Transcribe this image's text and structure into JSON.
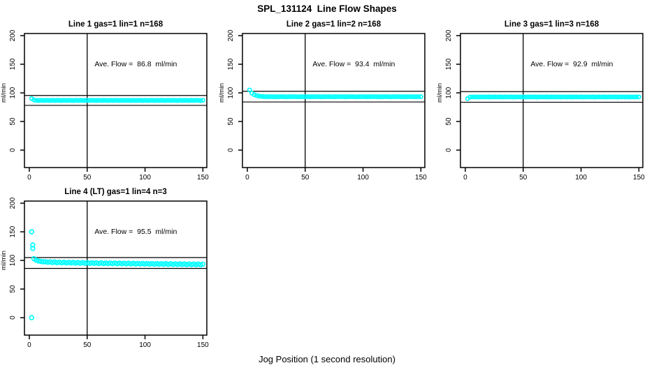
{
  "title": "SPL_131124  Line Flow Shapes",
  "xlabel": "Jog Position (1 second resolution)",
  "colors": {
    "points": "#00ffff",
    "axis": "#000000",
    "background": "#ffffff"
  },
  "chart_data": [
    {
      "type": "scatter",
      "title": "Line 1 gas=1 lin=1 n=168",
      "annotation": "Ave. Flow =  86.8  ml/min",
      "ave_flow_ml_min": 86.8,
      "ylabel": "ml/min",
      "xticks": [
        0,
        50,
        100,
        150
      ],
      "yticks": [
        0,
        50,
        100,
        150,
        200
      ],
      "xlim": [
        -4.2,
        153.4
      ],
      "ylim": [
        -30.5,
        203.7
      ],
      "vline_x": 50,
      "hlines_y": [
        95.48,
        78.12
      ],
      "grid": false,
      "point_radius": 2.6,
      "x_start": 2,
      "x_step": 2,
      "y": [
        90.0,
        87.6,
        86.8,
        86.6,
        87.0,
        86.7,
        86.9,
        86.8,
        86.6,
        87.0,
        86.7,
        86.9,
        86.8,
        86.6,
        87.0,
        86.7,
        86.9,
        86.8,
        86.6,
        87.0,
        86.7,
        86.9,
        86.8,
        86.6,
        87.0,
        86.7,
        86.9,
        86.8,
        86.6,
        87.0,
        86.7,
        86.9,
        86.8,
        86.6,
        87.0,
        86.7,
        86.9,
        86.8,
        86.6,
        87.0,
        86.7,
        86.9,
        86.8,
        86.6,
        87.0,
        86.7,
        86.9,
        86.8,
        86.6,
        87.0,
        86.7,
        86.9,
        86.8,
        86.6,
        87.0,
        86.7,
        86.9,
        86.8,
        86.6,
        87.0,
        86.7,
        86.9,
        86.8,
        86.6,
        87.0,
        86.7,
        86.9,
        86.8,
        86.6,
        87.0,
        86.7,
        86.9,
        86.8,
        86.6,
        87.0
      ],
      "outlier_points": []
    },
    {
      "type": "scatter",
      "title": "Line 2 gas=1 lin=2 n=168",
      "annotation": "Ave. Flow =  93.4  ml/min",
      "ave_flow_ml_min": 93.4,
      "ylabel": "ml/min",
      "xticks": [
        0,
        50,
        100,
        150
      ],
      "yticks": [
        0,
        50,
        100,
        150,
        200
      ],
      "xlim": [
        -4.2,
        153.4
      ],
      "ylim": [
        -30.5,
        203.7
      ],
      "vline_x": 50,
      "hlines_y": [
        102.74,
        84.06
      ],
      "grid": false,
      "point_radius": 2.6,
      "x_start": 2,
      "x_step": 2,
      "y": [
        105.0,
        99.5,
        96.8,
        95.2,
        94.3,
        93.8,
        93.5,
        93.3,
        93.2,
        93.4,
        93.2,
        93.1,
        93.3,
        93.2,
        93.4,
        93.2,
        93.1,
        93.3,
        93.2,
        93.4,
        93.2,
        93.1,
        93.3,
        93.2,
        93.4,
        93.2,
        93.1,
        93.3,
        93.2,
        93.4,
        93.2,
        93.1,
        93.3,
        93.2,
        93.4,
        93.2,
        93.1,
        93.3,
        93.2,
        93.4,
        93.2,
        93.1,
        93.3,
        93.2,
        93.4,
        93.2,
        93.1,
        93.3,
        93.2,
        93.4,
        93.2,
        93.1,
        93.3,
        93.2,
        93.4,
        93.2,
        93.1,
        93.3,
        93.2,
        93.4,
        93.2,
        93.1,
        93.3,
        93.2,
        93.4,
        93.2,
        93.1,
        93.3,
        93.2,
        93.4,
        93.2,
        93.1,
        93.3,
        93.2,
        93.4
      ],
      "outlier_points": []
    },
    {
      "type": "scatter",
      "title": "Line 3 gas=1 lin=3 n=168",
      "annotation": "Ave. Flow =  92.9  ml/min",
      "ave_flow_ml_min": 92.9,
      "ylabel": "ml/min",
      "xticks": [
        0,
        50,
        100,
        150
      ],
      "yticks": [
        0,
        50,
        100,
        150,
        200
      ],
      "xlim": [
        -4.2,
        153.4
      ],
      "ylim": [
        -30.5,
        203.7
      ],
      "vline_x": 50,
      "hlines_y": [
        102.19,
        83.61
      ],
      "grid": false,
      "point_radius": 2.6,
      "x_start": 2,
      "x_step": 2,
      "y": [
        90.0,
        92.6,
        92.9,
        92.8,
        93.0,
        92.7,
        92.9,
        92.9,
        92.8,
        93.0,
        92.7,
        92.9,
        92.9,
        92.8,
        93.0,
        92.7,
        92.9,
        92.9,
        92.8,
        93.0,
        92.7,
        92.9,
        92.9,
        92.8,
        93.0,
        92.7,
        92.9,
        92.9,
        92.8,
        93.0,
        92.7,
        92.9,
        92.9,
        92.8,
        93.0,
        92.7,
        92.9,
        92.9,
        92.8,
        93.0,
        92.7,
        92.9,
        92.9,
        92.8,
        93.0,
        92.7,
        92.9,
        92.9,
        92.8,
        93.0,
        92.7,
        92.9,
        92.9,
        92.8,
        93.0,
        92.7,
        92.9,
        92.9,
        92.8,
        93.0,
        92.7,
        92.9,
        92.9,
        92.8,
        93.0,
        92.7,
        92.9,
        92.9,
        92.8,
        93.0,
        92.7,
        92.9,
        92.8,
        93.0,
        92.9
      ],
      "outlier_points": []
    },
    {
      "type": "scatter",
      "title": "Line 4 (LT) gas=1 lin=4 n=3",
      "annotation": "Ave. Flow =  95.5  ml/min",
      "ave_flow_ml_min": 95.5,
      "ylabel": "ml/min",
      "xticks": [
        0,
        50,
        100,
        150
      ],
      "yticks": [
        0,
        50,
        100,
        150,
        200
      ],
      "xlim": [
        -4.2,
        153.4
      ],
      "ylim": [
        -30.5,
        203.7
      ],
      "vline_x": 50,
      "hlines_y": [
        105.05,
        85.95
      ],
      "grid": false,
      "point_radius": 2.9,
      "x_start": 4,
      "x_step": 2,
      "y": [
        103.0,
        100.5,
        99.0,
        98.2,
        97.6,
        97.8,
        96.8,
        97.5,
        96.4,
        97.2,
        96.0,
        97.0,
        95.8,
        96.8,
        95.6,
        96.6,
        95.5,
        96.5,
        95.3,
        96.3,
        95.2,
        96.2,
        95.0,
        96.0,
        94.9,
        95.9,
        94.8,
        95.8,
        94.7,
        95.7,
        94.6,
        95.6,
        94.5,
        95.5,
        94.4,
        95.4,
        94.3,
        95.3,
        94.2,
        95.2,
        94.1,
        95.1,
        94.0,
        95.0,
        93.9,
        94.9,
        93.8,
        94.8,
        93.7,
        94.7,
        93.6,
        94.6,
        93.5,
        94.5,
        93.4,
        94.4,
        93.3,
        94.3,
        93.2,
        94.2,
        93.1,
        94.1,
        93.0,
        94.0,
        92.9,
        93.9,
        92.8,
        93.8,
        92.7,
        93.7,
        92.6,
        93.6,
        92.5,
        93.5
      ],
      "outlier_points": [
        [
          2,
          150
        ],
        [
          3,
          127
        ],
        [
          3,
          121
        ],
        [
          2,
          0
        ]
      ]
    }
  ]
}
